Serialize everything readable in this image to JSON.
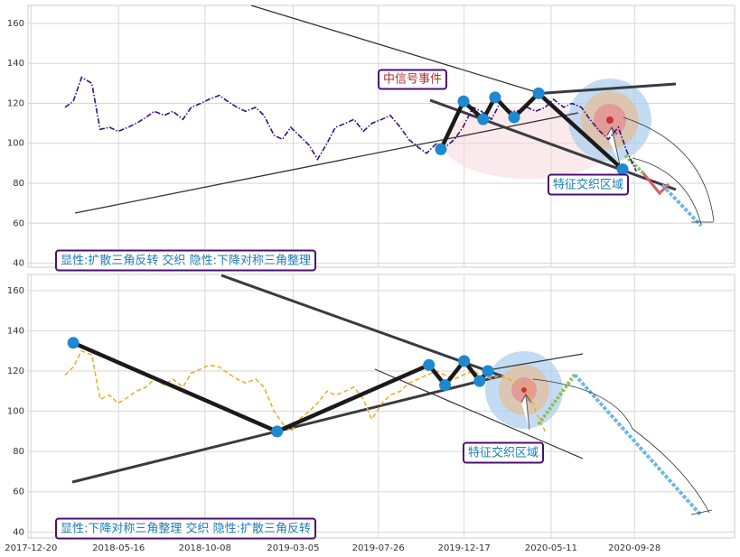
{
  "chart_data": [
    {
      "type": "line",
      "xlim": [
        "2017-12-15",
        "2021-03-15"
      ],
      "ylim": [
        38,
        169
      ],
      "yticks": [
        40,
        60,
        80,
        100,
        120,
        140,
        160
      ],
      "grid": true,
      "x": [
        "2018-02-15",
        "2018-03-01",
        "2018-03-15",
        "2018-04-01",
        "2018-04-15",
        "2018-05-01",
        "2018-05-15",
        "2018-06-01",
        "2018-06-15",
        "2018-07-01",
        "2018-07-15",
        "2018-08-01",
        "2018-08-15",
        "2018-09-01",
        "2018-09-15",
        "2018-10-01",
        "2018-10-15",
        "2018-11-01",
        "2018-11-15",
        "2018-12-01",
        "2018-12-15",
        "2019-01-01",
        "2019-01-15",
        "2019-02-01",
        "2019-02-15",
        "2019-03-01",
        "2019-03-15",
        "2019-04-01",
        "2019-04-15",
        "2019-05-01",
        "2019-05-15",
        "2019-06-01",
        "2019-06-15",
        "2019-07-01",
        "2019-07-15",
        "2019-08-01",
        "2019-08-15",
        "2019-09-01",
        "2019-09-15",
        "2019-10-01",
        "2019-10-15",
        "2019-11-01",
        "2019-11-15",
        "2019-12-01",
        "2019-12-15",
        "2020-01-01",
        "2020-01-15",
        "2020-02-01",
        "2020-02-15",
        "2020-03-01",
        "2020-03-15",
        "2020-04-01",
        "2020-04-15",
        "2020-05-01",
        "2020-05-15",
        "2020-06-01",
        "2020-06-15",
        "2020-07-01",
        "2020-07-15",
        "2020-08-01",
        "2020-08-15",
        "2020-09-01",
        "2020-09-15",
        "2020-10-01"
      ],
      "values": [
        118,
        121,
        133,
        130,
        107,
        108,
        106,
        108,
        110,
        113,
        116,
        114,
        116,
        112,
        118,
        120,
        122,
        124,
        121,
        118,
        116,
        118,
        114,
        104,
        102,
        108,
        104,
        99,
        92,
        100,
        108,
        110,
        112,
        106,
        110,
        112,
        114,
        108,
        102,
        98,
        95,
        100,
        98,
        102,
        108,
        118,
        116,
        112,
        120,
        116,
        116,
        118,
        116,
        118,
        122,
        118,
        120,
        118,
        112,
        106,
        102,
        108,
        96,
        86
      ],
      "color": "#3b0f80",
      "dash": "dash-dot",
      "pattern_points": {
        "x": [
          "2019-11-08",
          "2019-12-16",
          "2020-01-18",
          "2020-02-07",
          "2020-03-10",
          "2020-04-20",
          "2020-09-08"
        ],
        "values": [
          97,
          121,
          112,
          123,
          113,
          125,
          87
        ],
        "color": "#1e88d0"
      },
      "annotations": [
        "中信号事件",
        "特征交织区域",
        "显性:扩散三角反转 交织 隐性:下降对称三角整理"
      ]
    },
    {
      "type": "line",
      "xlim": [
        "2017-12-15",
        "2021-03-15"
      ],
      "ylim": [
        37,
        168
      ],
      "yticks": [
        40,
        60,
        80,
        100,
        120,
        140,
        160
      ],
      "grid": true,
      "xticks": [
        "2017-12-20",
        "2018-05-16",
        "2018-10-08",
        "2019-03-05",
        "2019-07-26",
        "2019-12-17",
        "2020-05-11",
        "2020-09-28"
      ],
      "x": [
        "2018-02-15",
        "2018-03-01",
        "2018-03-15",
        "2018-04-01",
        "2018-04-15",
        "2018-05-01",
        "2018-05-15",
        "2018-06-01",
        "2018-06-15",
        "2018-07-01",
        "2018-07-15",
        "2018-08-01",
        "2018-08-15",
        "2018-09-01",
        "2018-09-15",
        "2018-10-01",
        "2018-10-15",
        "2018-11-01",
        "2018-11-15",
        "2018-12-01",
        "2018-12-15",
        "2019-01-01",
        "2019-01-15",
        "2019-02-01",
        "2019-02-15",
        "2019-03-01",
        "2019-03-15",
        "2019-04-01",
        "2019-04-15",
        "2019-05-01",
        "2019-05-15",
        "2019-06-01",
        "2019-06-15",
        "2019-07-01",
        "2019-07-15",
        "2019-08-01",
        "2019-08-15",
        "2019-09-01",
        "2019-09-15",
        "2019-10-01",
        "2019-10-15",
        "2019-11-01",
        "2019-11-15",
        "2019-12-01",
        "2019-12-15",
        "2020-01-01",
        "2020-01-15",
        "2020-02-01",
        "2020-02-15",
        "2020-03-01",
        "2020-03-15",
        "2020-04-01",
        "2020-04-15",
        "2020-05-01"
      ],
      "values": [
        118,
        122,
        130,
        128,
        106,
        108,
        104,
        107,
        110,
        112,
        116,
        113,
        116,
        112,
        119,
        121,
        123,
        122,
        119,
        116,
        114,
        116,
        112,
        100,
        94,
        90,
        96,
        100,
        104,
        110,
        108,
        110,
        112,
        106,
        96,
        104,
        108,
        110,
        114,
        116,
        118,
        120,
        118,
        116,
        118,
        120,
        118,
        116,
        118,
        116,
        114,
        112,
        100,
        90
      ],
      "color": "#e8b030",
      "dash": "dash",
      "pattern_points": {
        "x": [
          "2018-03-01",
          "2019-02-06",
          "2019-10-19",
          "2019-11-15",
          "2019-12-17",
          "2020-01-12",
          "2020-01-26"
        ],
        "values": [
          134,
          90,
          123,
          113,
          125,
          115,
          120
        ],
        "color": "#1e88d0"
      },
      "annotations": [
        "特征交织区域",
        "显性:下降对称三角整理 交织 隐性:扩散三角反转"
      ]
    }
  ]
}
